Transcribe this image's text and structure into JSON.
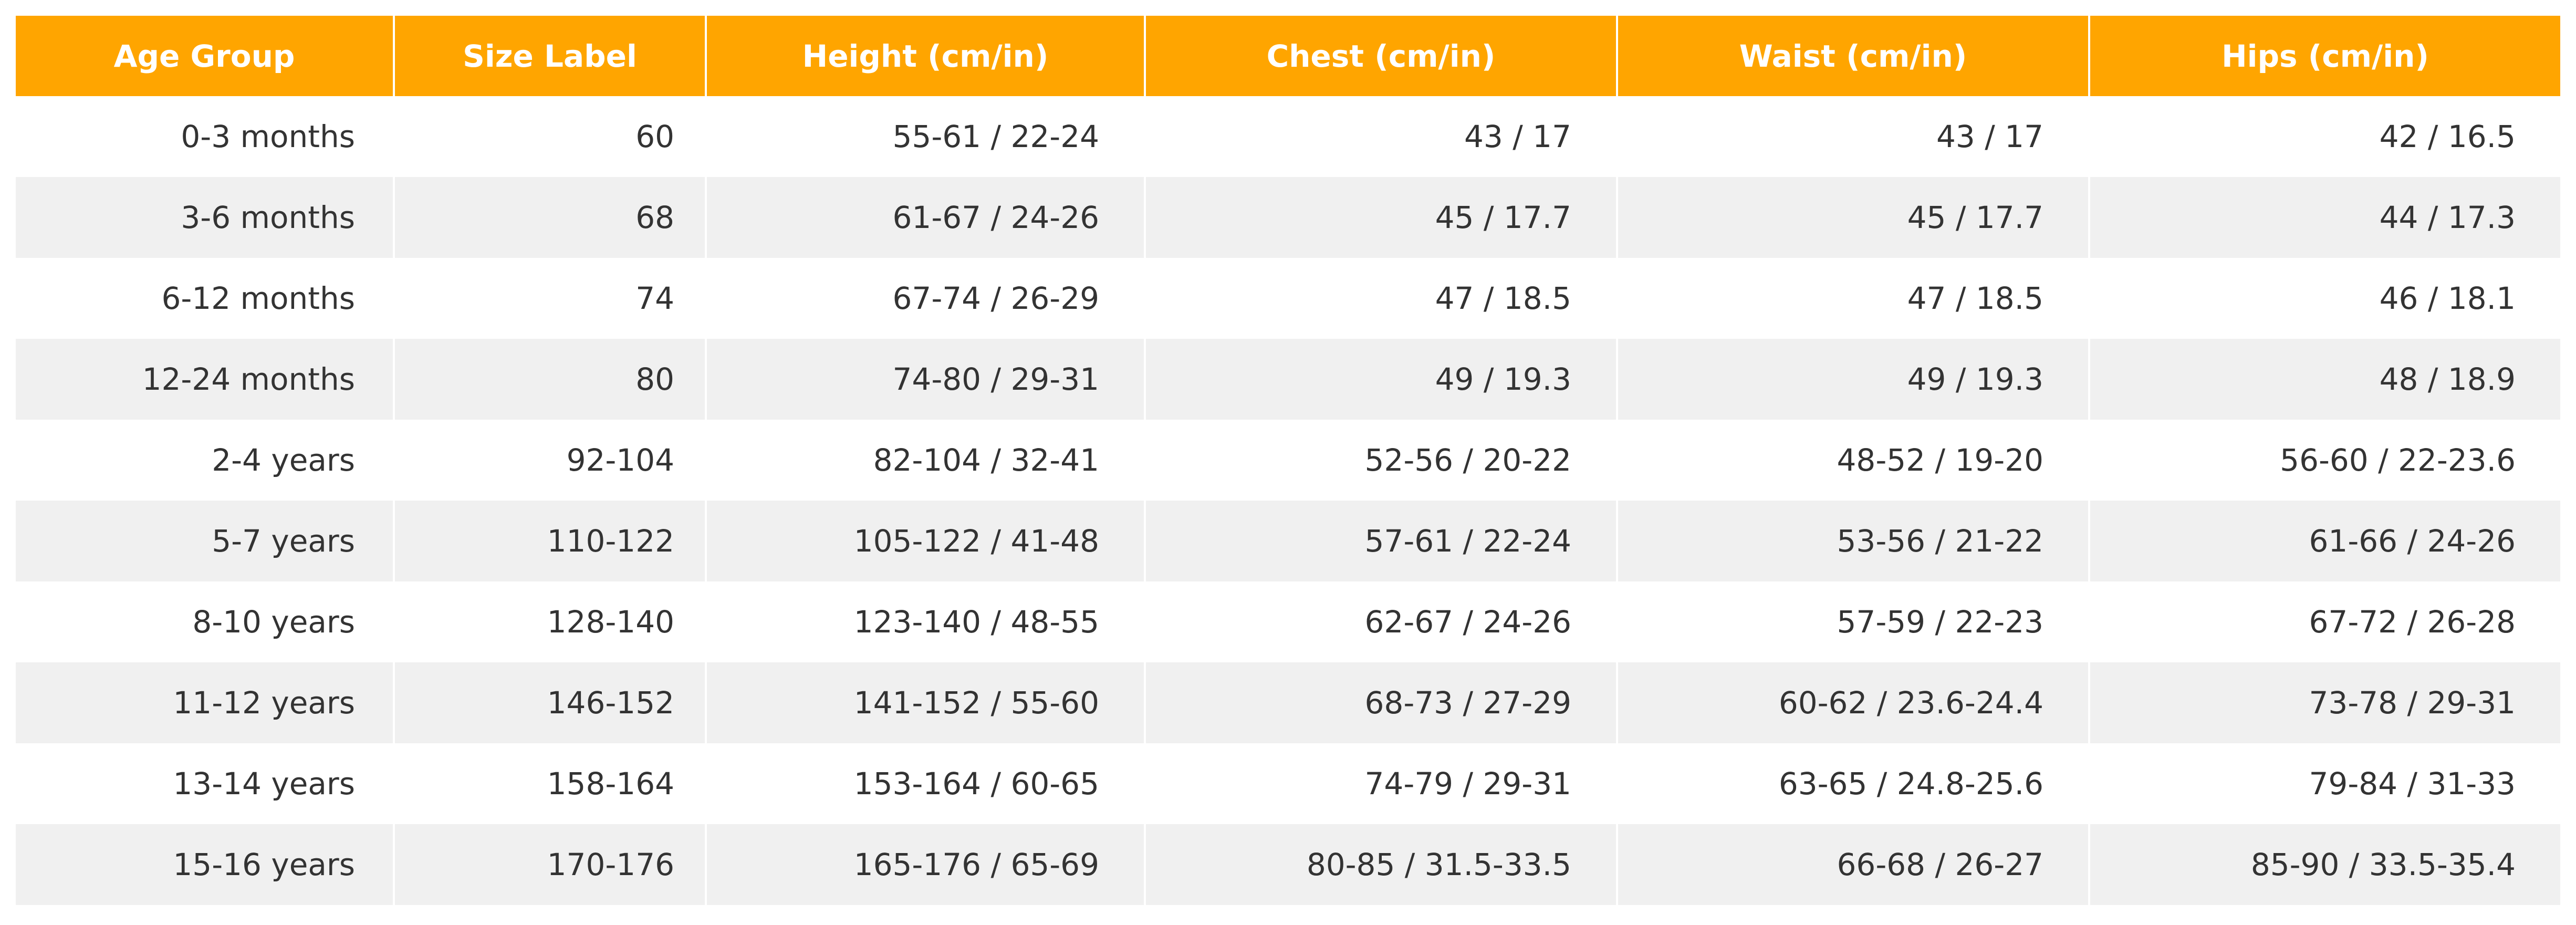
{
  "table": {
    "headers": [
      "Age Group",
      "Size Label",
      "Height (cm/in)",
      "Chest (cm/in)",
      "Waist (cm/in)",
      "Hips (cm/in)"
    ],
    "rows": [
      [
        "0-3 months",
        "60",
        "55-61 / 22-24",
        "43 / 17",
        "43 / 17",
        "42 / 16.5"
      ],
      [
        "3-6 months",
        "68",
        "61-67 / 24-26",
        "45 / 17.7",
        "45 / 17.7",
        "44 / 17.3"
      ],
      [
        "6-12 months",
        "74",
        "67-74 / 26-29",
        "47 / 18.5",
        "47 / 18.5",
        "46 / 18.1"
      ],
      [
        "12-24 months",
        "80",
        "74-80 / 29-31",
        "49 / 19.3",
        "49 / 19.3",
        "48 / 18.9"
      ],
      [
        "2-4 years",
        "92-104",
        "82-104 / 32-41",
        "52-56 / 20-22",
        "48-52 / 19-20",
        "56-60 / 22-23.6"
      ],
      [
        "5-7 years",
        "110-122",
        "105-122 / 41-48",
        "57-61 / 22-24",
        "53-56 / 21-22",
        "61-66 / 24-26"
      ],
      [
        "8-10 years",
        "128-140",
        "123-140 / 48-55",
        "62-67 / 24-26",
        "57-59 / 22-23",
        "67-72 / 26-28"
      ],
      [
        "11-12 years",
        "146-152",
        "141-152 / 55-60",
        "68-73 / 27-29",
        "60-62 / 23.6-24.4",
        "73-78 / 29-31"
      ],
      [
        "13-14 years",
        "158-164",
        "153-164 / 60-65",
        "74-79 / 29-31",
        "63-65 / 24.8-25.6",
        "79-84 / 31-33"
      ],
      [
        "15-16 years",
        "170-176",
        "165-176 / 65-69",
        "80-85 / 31.5-33.5",
        "66-68 / 26-27",
        "85-90 / 33.5-35.4"
      ]
    ]
  },
  "colors": {
    "header_bg": "#FFA500",
    "header_text": "#FFFFFF",
    "row_alt_bg": "#F0F0F0",
    "body_text": "#333333"
  }
}
